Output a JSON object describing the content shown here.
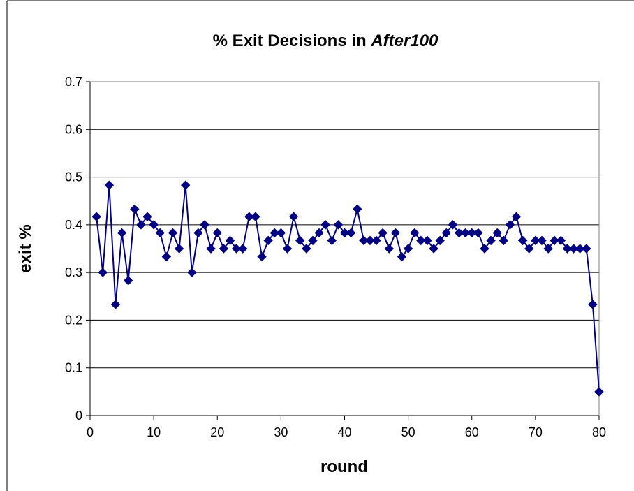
{
  "colors": {
    "series": "#000080",
    "grid": "#000000",
    "plot_border": "#808080",
    "background": "#ffffff"
  },
  "chart_data": {
    "type": "line",
    "title": "% Exit Decisions in ",
    "title_emphasis": "After100",
    "xlabel": "round",
    "ylabel": "exit %",
    "xlim": [
      0,
      80
    ],
    "ylim": [
      0,
      0.7
    ],
    "xticks": [
      0,
      10,
      20,
      30,
      40,
      50,
      60,
      70,
      80
    ],
    "yticks": [
      0,
      0.1,
      0.2,
      0.3,
      0.4,
      0.5,
      0.6,
      0.7
    ],
    "xtick_labels": [
      "0",
      "10",
      "20",
      "30",
      "40",
      "50",
      "60",
      "70",
      "80"
    ],
    "ytick_labels": [
      "0",
      "0.1",
      "0.2",
      "0.3",
      "0.4",
      "0.5",
      "0.6",
      "0.7"
    ],
    "grid": "horizontal major",
    "legend": "none",
    "marker": "diamond",
    "series": [
      {
        "x": [
          1,
          2,
          3,
          4,
          5,
          6,
          7,
          8,
          9,
          10,
          11,
          12,
          13,
          14,
          15,
          16,
          17,
          18,
          19,
          20,
          21,
          22,
          23,
          24,
          25,
          26,
          27,
          28,
          29,
          30,
          31,
          32,
          33,
          34,
          35,
          36,
          37,
          38,
          39,
          40,
          41,
          42,
          43,
          44,
          45,
          46,
          47,
          48,
          49,
          50,
          51,
          52,
          53,
          54,
          55,
          56,
          57,
          58,
          59,
          60,
          61,
          62,
          63,
          64,
          65,
          66,
          67,
          68,
          69,
          70,
          71,
          72,
          73,
          74,
          75,
          76,
          77,
          78,
          79,
          80
        ],
        "values": [
          0.417,
          0.3,
          0.483,
          0.233,
          0.383,
          0.283,
          0.433,
          0.4,
          0.417,
          0.4,
          0.383,
          0.333,
          0.383,
          0.35,
          0.483,
          0.3,
          0.383,
          0.4,
          0.35,
          0.383,
          0.35,
          0.367,
          0.35,
          0.35,
          0.417,
          0.417,
          0.333,
          0.367,
          0.383,
          0.383,
          0.35,
          0.417,
          0.367,
          0.35,
          0.367,
          0.383,
          0.4,
          0.367,
          0.4,
          0.383,
          0.383,
          0.433,
          0.367,
          0.367,
          0.367,
          0.383,
          0.35,
          0.383,
          0.333,
          0.35,
          0.383,
          0.367,
          0.367,
          0.35,
          0.367,
          0.383,
          0.4,
          0.383,
          0.383,
          0.383,
          0.383,
          0.35,
          0.367,
          0.383,
          0.367,
          0.4,
          0.417,
          0.367,
          0.35,
          0.367,
          0.367,
          0.35,
          0.367,
          0.367,
          0.35,
          0.35,
          0.35,
          0.35,
          0.233,
          0.05
        ]
      }
    ]
  }
}
